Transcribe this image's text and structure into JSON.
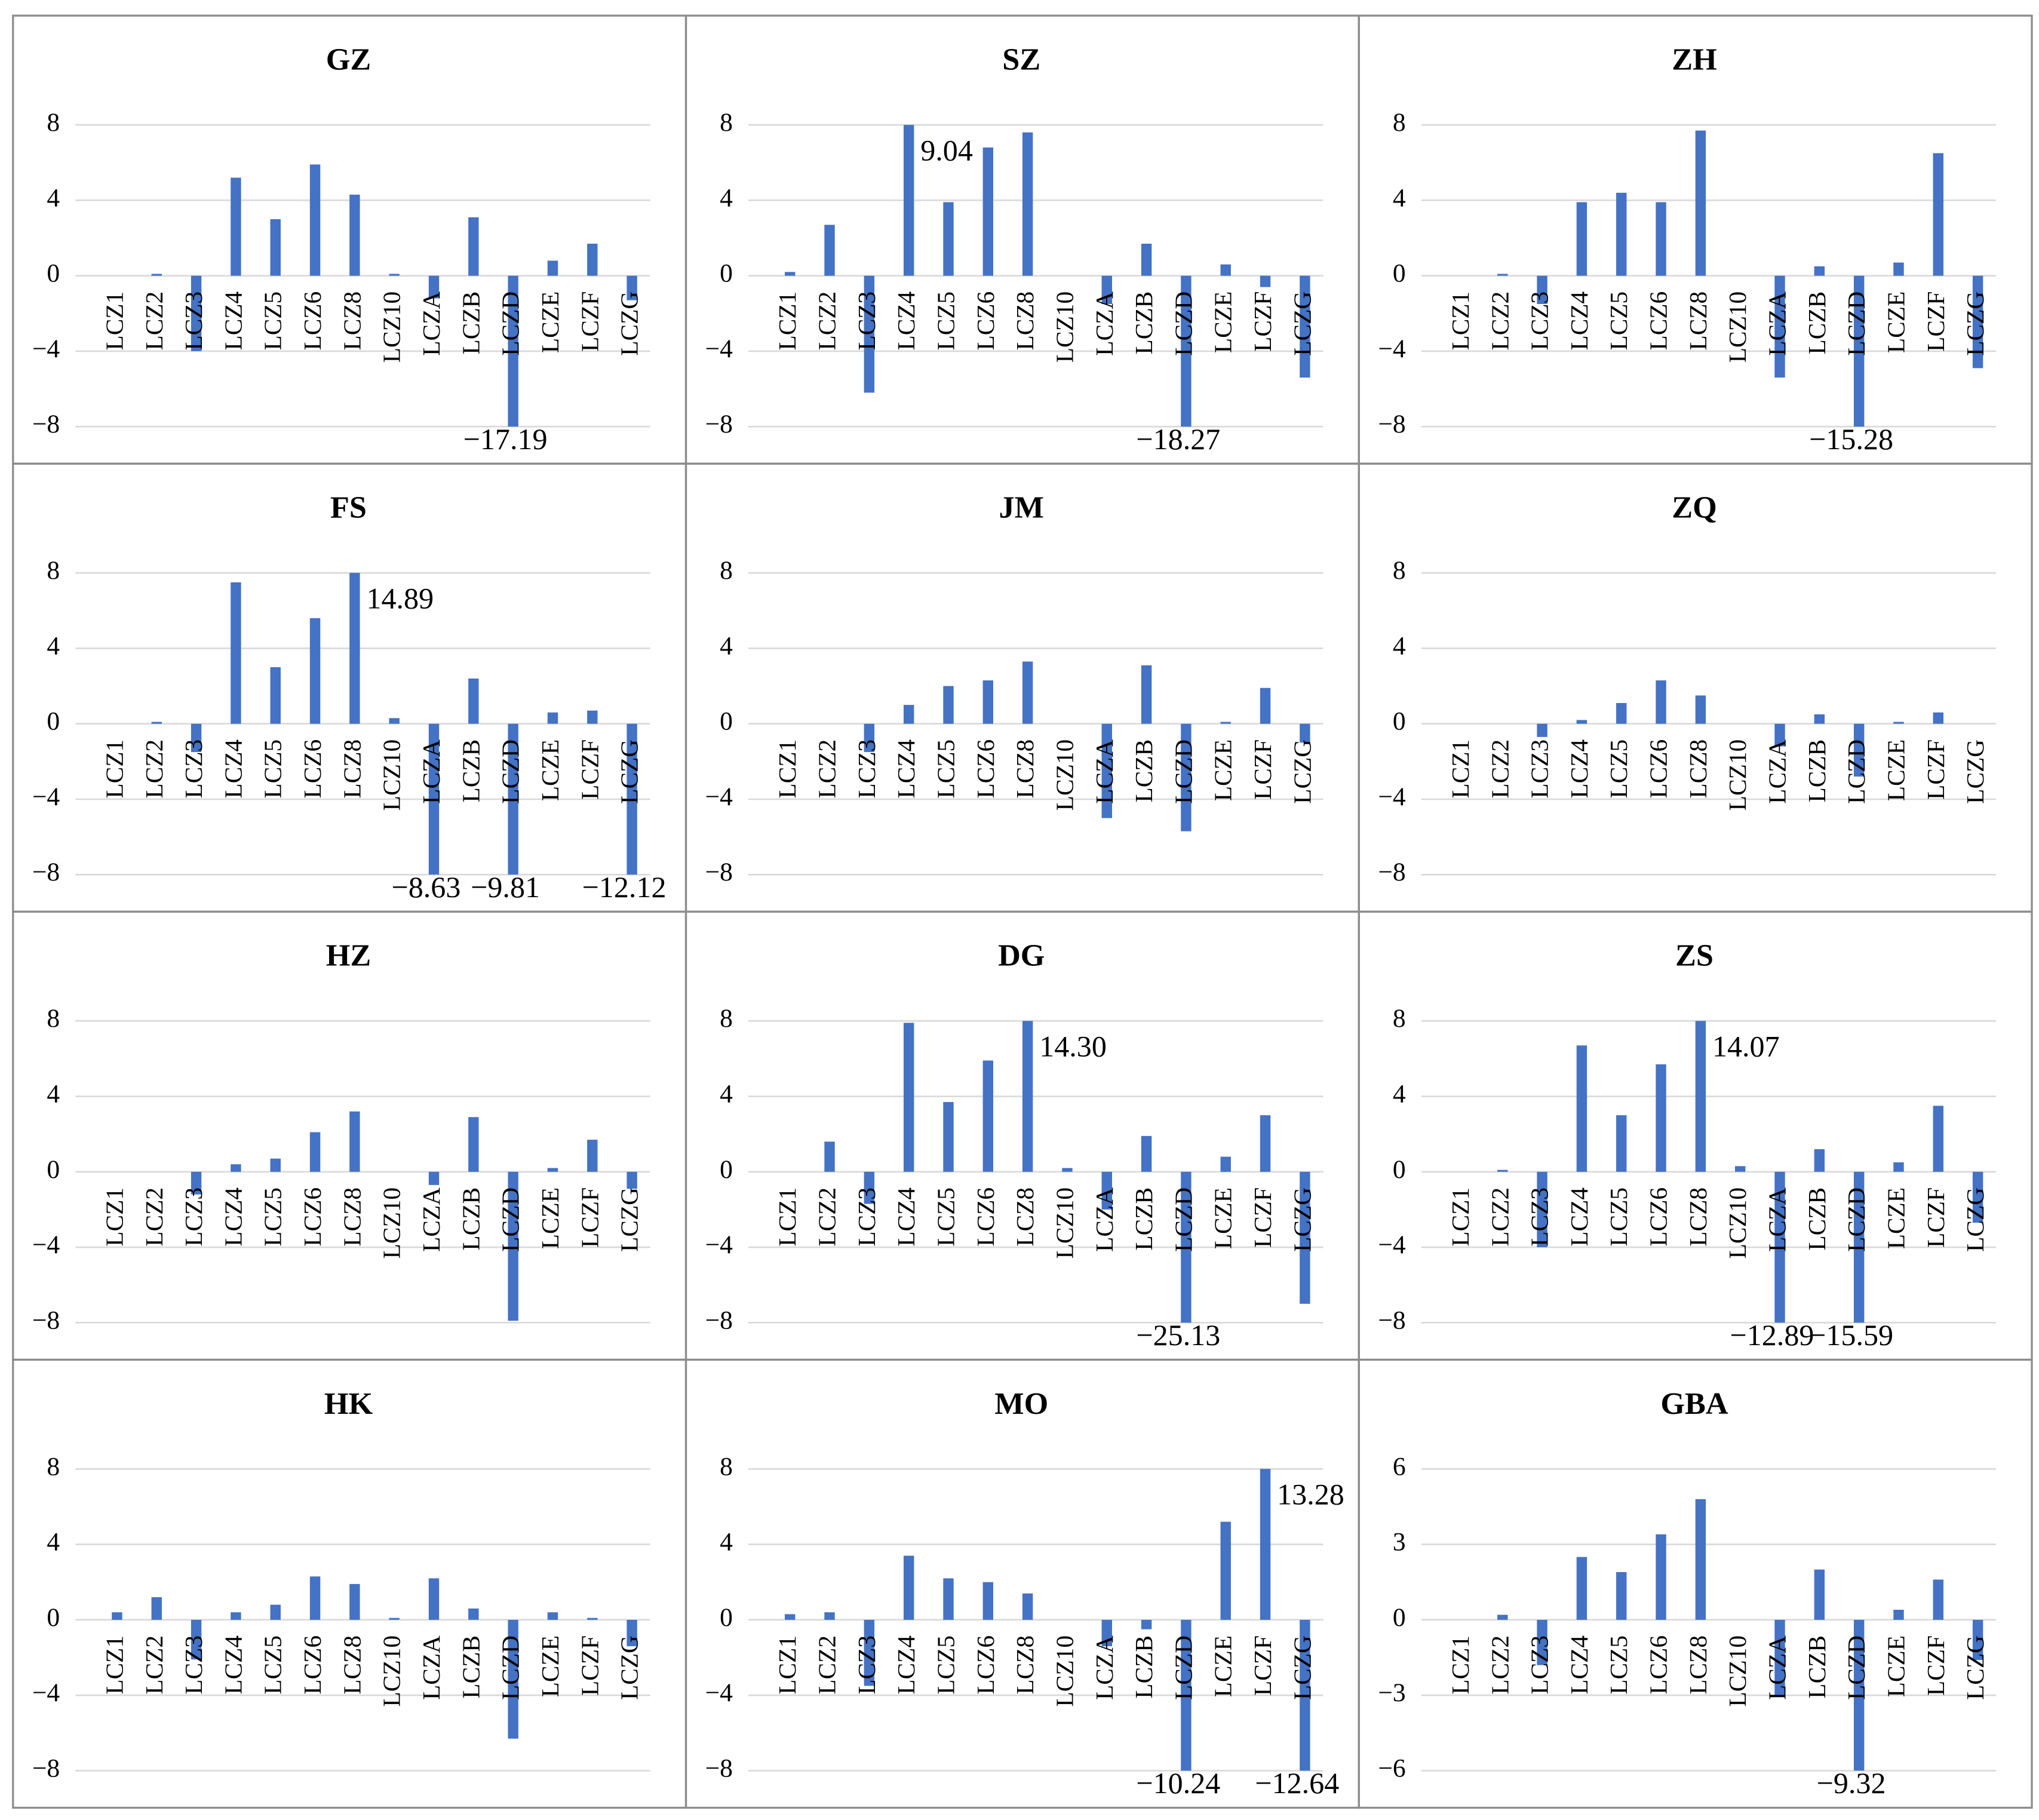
{
  "chart_data": [
    {
      "type": "bar",
      "title": "GZ",
      "categories": [
        "LCZ1",
        "LCZ2",
        "LCZ3",
        "LCZ4",
        "LCZ5",
        "LCZ6",
        "LCZ8",
        "LCZ10",
        "LCZA",
        "LCZB",
        "LCZD",
        "LCZE",
        "LCZF",
        "LCZG"
      ],
      "values": [
        0,
        0.1,
        -4.0,
        5.2,
        3.0,
        5.9,
        4.3,
        0.1,
        -1.2,
        3.1,
        -17.19,
        0.8,
        1.7,
        -1.3
      ],
      "value_labels": [
        null,
        null,
        null,
        null,
        null,
        null,
        null,
        null,
        null,
        null,
        "−17.19",
        null,
        null,
        null
      ],
      "color": "#4472c4",
      "ylim": [
        -8,
        8
      ],
      "yticks": [
        8,
        4,
        0,
        {
          "value": -4,
          "label": "−4"
        },
        {
          "value": -8,
          "label": "−8"
        }
      ],
      "grid": true
    },
    {
      "type": "bar",
      "title": "SZ",
      "categories": [
        "LCZ1",
        "LCZ2",
        "LCZ3",
        "LCZ4",
        "LCZ5",
        "LCZ6",
        "LCZ8",
        "LCZ10",
        "LCZA",
        "LCZB",
        "LCZD",
        "LCZE",
        "LCZF",
        "LCZG"
      ],
      "values": [
        0.2,
        2.7,
        -6.2,
        9.04,
        3.9,
        6.8,
        7.6,
        0,
        -1.5,
        1.7,
        -18.27,
        0.6,
        -0.6,
        -5.4
      ],
      "value_labels": [
        null,
        null,
        null,
        "9.04",
        null,
        null,
        null,
        null,
        null,
        null,
        "−18.27",
        null,
        null,
        null
      ],
      "color": "#4472c4",
      "ylim": [
        -8,
        8
      ],
      "yticks": [
        8,
        4,
        0,
        {
          "value": -4,
          "label": "−4"
        },
        {
          "value": -8,
          "label": "−8"
        }
      ],
      "grid": true
    },
    {
      "type": "bar",
      "title": "ZH",
      "categories": [
        "LCZ1",
        "LCZ2",
        "LCZ3",
        "LCZ4",
        "LCZ5",
        "LCZ6",
        "LCZ8",
        "LCZ10",
        "LCZA",
        "LCZB",
        "LCZD",
        "LCZE",
        "LCZF",
        "LCZG"
      ],
      "values": [
        0,
        0.1,
        -1.5,
        3.9,
        4.4,
        3.9,
        7.7,
        0,
        -5.4,
        0.5,
        -15.28,
        0.7,
        6.5,
        -4.9
      ],
      "value_labels": [
        null,
        null,
        null,
        null,
        null,
        null,
        null,
        null,
        null,
        null,
        "−15.28",
        null,
        null,
        null
      ],
      "color": "#4472c4",
      "ylim": [
        -8,
        8
      ],
      "yticks": [
        8,
        4,
        0,
        {
          "value": -4,
          "label": "−4"
        },
        {
          "value": -8,
          "label": "−8"
        }
      ],
      "grid": true
    },
    {
      "type": "bar",
      "title": "FS",
      "categories": [
        "LCZ1",
        "LCZ2",
        "LCZ3",
        "LCZ4",
        "LCZ5",
        "LCZ6",
        "LCZ8",
        "LCZ10",
        "LCZA",
        "LCZB",
        "LCZD",
        "LCZE",
        "LCZF",
        "LCZG"
      ],
      "values": [
        0,
        0.1,
        -1.5,
        7.5,
        3.0,
        5.6,
        14.89,
        0.3,
        -8.63,
        2.4,
        -9.81,
        0.6,
        0.7,
        -12.12
      ],
      "value_labels": [
        null,
        null,
        null,
        null,
        null,
        null,
        "14.89",
        null,
        "−8.63",
        null,
        "−9.81",
        null,
        null,
        "−12.12"
      ],
      "color": "#4472c4",
      "ylim": [
        -8,
        8
      ],
      "yticks": [
        8,
        4,
        0,
        {
          "value": -4,
          "label": "−4"
        },
        {
          "value": -8,
          "label": "−8"
        }
      ],
      "grid": true
    },
    {
      "type": "bar",
      "title": "JM",
      "categories": [
        "LCZ1",
        "LCZ2",
        "LCZ3",
        "LCZ4",
        "LCZ5",
        "LCZ6",
        "LCZ8",
        "LCZ10",
        "LCZA",
        "LCZB",
        "LCZD",
        "LCZE",
        "LCZF",
        "LCZG"
      ],
      "values": [
        0,
        0,
        -1.5,
        1.0,
        2.0,
        2.3,
        3.3,
        0,
        -5.0,
        3.1,
        -5.7,
        0.1,
        1.9,
        -1.0
      ],
      "color": "#4472c4",
      "ylim": [
        -8,
        8
      ],
      "yticks": [
        8,
        4,
        0,
        {
          "value": -4,
          "label": "−4"
        },
        {
          "value": -8,
          "label": "−8"
        }
      ],
      "grid": true
    },
    {
      "type": "bar",
      "title": "ZQ",
      "categories": [
        "LCZ1",
        "LCZ2",
        "LCZ3",
        "LCZ4",
        "LCZ5",
        "LCZ6",
        "LCZ8",
        "LCZ10",
        "LCZA",
        "LCZB",
        "LCZD",
        "LCZE",
        "LCZF",
        "LCZG"
      ],
      "values": [
        0,
        0,
        -0.7,
        0.2,
        1.1,
        2.3,
        1.5,
        0,
        -1.2,
        0.5,
        -2.8,
        0.1,
        0.6,
        0
      ],
      "color": "#4472c4",
      "ylim": [
        -8,
        8
      ],
      "yticks": [
        8,
        4,
        0,
        {
          "value": -4,
          "label": "−4"
        },
        {
          "value": -8,
          "label": "−8"
        }
      ],
      "grid": true
    },
    {
      "type": "bar",
      "title": "HZ",
      "categories": [
        "LCZ1",
        "LCZ2",
        "LCZ3",
        "LCZ4",
        "LCZ5",
        "LCZ6",
        "LCZ8",
        "LCZ10",
        "LCZA",
        "LCZB",
        "LCZD",
        "LCZE",
        "LCZF",
        "LCZG"
      ],
      "values": [
        0,
        0,
        -1.2,
        0.4,
        0.7,
        2.1,
        3.2,
        0,
        -0.7,
        2.9,
        -7.9,
        0.2,
        1.7,
        -0.9
      ],
      "color": "#4472c4",
      "ylim": [
        -8,
        8
      ],
      "yticks": [
        8,
        4,
        0,
        {
          "value": -4,
          "label": "−4"
        },
        {
          "value": -8,
          "label": "−8"
        }
      ],
      "grid": true
    },
    {
      "type": "bar",
      "title": "DG",
      "categories": [
        "LCZ1",
        "LCZ2",
        "LCZ3",
        "LCZ4",
        "LCZ5",
        "LCZ6",
        "LCZ8",
        "LCZ10",
        "LCZA",
        "LCZB",
        "LCZD",
        "LCZE",
        "LCZF",
        "LCZG"
      ],
      "values": [
        0,
        1.6,
        -1.7,
        7.9,
        3.7,
        5.9,
        14.3,
        0.2,
        -2.0,
        1.9,
        -25.13,
        0.8,
        3.0,
        -7.0
      ],
      "value_labels": [
        null,
        null,
        null,
        null,
        null,
        null,
        "14.30",
        null,
        null,
        null,
        "−25.13",
        null,
        null,
        null
      ],
      "color": "#4472c4",
      "ylim": [
        -8,
        8
      ],
      "yticks": [
        8,
        4,
        0,
        {
          "value": -4,
          "label": "−4"
        },
        {
          "value": -8,
          "label": "−8"
        }
      ],
      "grid": true
    },
    {
      "type": "bar",
      "title": "ZS",
      "categories": [
        "LCZ1",
        "LCZ2",
        "LCZ3",
        "LCZ4",
        "LCZ5",
        "LCZ6",
        "LCZ8",
        "LCZ10",
        "LCZA",
        "LCZB",
        "LCZD",
        "LCZE",
        "LCZF",
        "LCZG"
      ],
      "values": [
        0,
        0.1,
        -4.0,
        6.7,
        3.0,
        5.7,
        14.07,
        0.3,
        -12.89,
        1.2,
        -15.59,
        0.5,
        3.5,
        -2.7
      ],
      "value_labels": [
        null,
        null,
        null,
        null,
        null,
        null,
        "14.07",
        null,
        "−12.89",
        null,
        "−15.59",
        null,
        null,
        null
      ],
      "color": "#4472c4",
      "ylim": [
        -8,
        8
      ],
      "yticks": [
        8,
        4,
        0,
        {
          "value": -4,
          "label": "−4"
        },
        {
          "value": -8,
          "label": "−8"
        }
      ],
      "grid": true
    },
    {
      "type": "bar",
      "title": "HK",
      "categories": [
        "LCZ1",
        "LCZ2",
        "LCZ3",
        "LCZ4",
        "LCZ5",
        "LCZ6",
        "LCZ8",
        "LCZ10",
        "LCZA",
        "LCZB",
        "LCZD",
        "LCZE",
        "LCZF",
        "LCZG"
      ],
      "values": [
        0.4,
        1.2,
        -2.1,
        0.4,
        0.8,
        2.3,
        1.9,
        0.1,
        2.2,
        0.6,
        -6.3,
        0.4,
        0.1,
        -1.4
      ],
      "color": "#4472c4",
      "ylim": [
        -8,
        8
      ],
      "yticks": [
        8,
        4,
        0,
        {
          "value": -4,
          "label": "−4"
        },
        {
          "value": -8,
          "label": "−8"
        }
      ],
      "grid": true
    },
    {
      "type": "bar",
      "title": "MO",
      "categories": [
        "LCZ1",
        "LCZ2",
        "LCZ3",
        "LCZ4",
        "LCZ5",
        "LCZ6",
        "LCZ8",
        "LCZ10",
        "LCZA",
        "LCZB",
        "LCZD",
        "LCZE",
        "LCZF",
        "LCZG"
      ],
      "values": [
        0.3,
        0.4,
        -3.5,
        3.4,
        2.2,
        2.0,
        1.4,
        0,
        -1.4,
        -0.5,
        -10.24,
        5.2,
        13.28,
        -12.64
      ],
      "value_labels": [
        null,
        null,
        null,
        null,
        null,
        null,
        null,
        null,
        null,
        null,
        "−10.24",
        null,
        "13.28",
        "−12.64"
      ],
      "color": "#4472c4",
      "ylim": [
        -8,
        8
      ],
      "yticks": [
        8,
        4,
        0,
        {
          "value": -4,
          "label": "−4"
        },
        {
          "value": -8,
          "label": "−8"
        }
      ],
      "grid": true
    },
    {
      "type": "bar",
      "title": "GBA",
      "categories": [
        "LCZ1",
        "LCZ2",
        "LCZ3",
        "LCZ4",
        "LCZ5",
        "LCZ6",
        "LCZ8",
        "LCZ10",
        "LCZA",
        "LCZB",
        "LCZD",
        "LCZE",
        "LCZF",
        "LCZG"
      ],
      "values": [
        0,
        0.2,
        -1.8,
        2.5,
        1.9,
        3.4,
        4.8,
        0,
        -3.0,
        2.0,
        -9.32,
        0.4,
        1.6,
        -1.6
      ],
      "value_labels": [
        null,
        null,
        null,
        null,
        null,
        null,
        null,
        null,
        null,
        null,
        "−9.32",
        null,
        null,
        null
      ],
      "color": "#4472c4",
      "ylim": [
        -6,
        6
      ],
      "yticks": [
        6,
        3,
        0,
        {
          "value": -3,
          "label": "−3"
        },
        {
          "value": -6,
          "label": "−6"
        }
      ],
      "grid": true
    }
  ]
}
